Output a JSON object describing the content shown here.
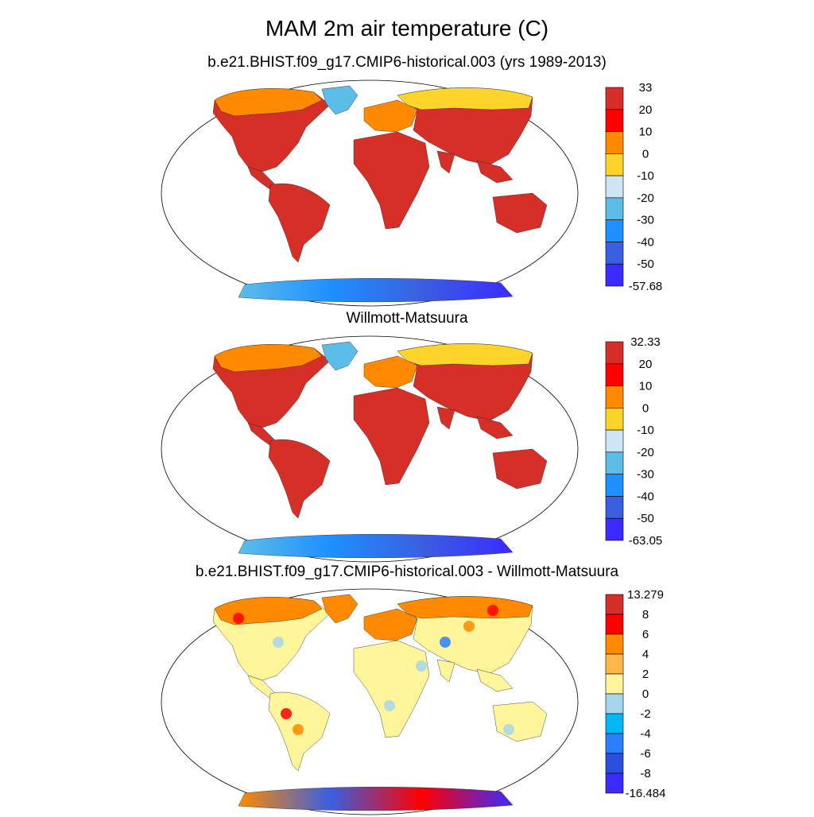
{
  "figure": {
    "title": "MAM 2m air temperature (C)"
  },
  "panels": [
    {
      "subtitle": "b.e21.BHIST.f09_g17.CMIP6-historical.003 (yrs 1989-2013)",
      "colorbar": {
        "labels": [
          "33",
          "20",
          "10",
          "0",
          "-10",
          "-20",
          "-30",
          "-40",
          "-50",
          "-57.68"
        ],
        "colors": [
          "#d62f27",
          "#fe0000",
          "#ff8a00",
          "#ffd42a",
          "#cce6f5",
          "#5cbde9",
          "#1e90ff",
          "#3a5fe0",
          "#3b2bff"
        ]
      },
      "land_color": "#d62f27",
      "north_color": "#ff8a00",
      "high_lat_color": "#ffd42a",
      "ice_colors": [
        "#5cbde9",
        "#1e90ff",
        "#3a5fe0",
        "#3b2bff"
      ]
    },
    {
      "subtitle": "Willmott-Matsuura",
      "colorbar": {
        "labels": [
          "32.33",
          "20",
          "10",
          "0",
          "-10",
          "-20",
          "-30",
          "-40",
          "-50",
          "-63.05"
        ],
        "colors": [
          "#d62f27",
          "#fe0000",
          "#ff8a00",
          "#ffd42a",
          "#cce6f5",
          "#5cbde9",
          "#1e90ff",
          "#3a5fe0",
          "#3b2bff"
        ]
      },
      "land_color": "#d62f27",
      "north_color": "#ff8a00",
      "high_lat_color": "#ffd42a",
      "ice_colors": [
        "#5cbde9",
        "#1e90ff",
        "#3a5fe0",
        "#3b2bff"
      ]
    },
    {
      "subtitle": "b.e21.BHIST.f09_g17.CMIP6-historical.003 - Willmott-Matsuura",
      "colorbar": {
        "labels": [
          "13.279",
          "8",
          "6",
          "4",
          "2",
          "0",
          "-2",
          "-4",
          "-6",
          "-8",
          "-16.484"
        ],
        "colors": [
          "#d62f27",
          "#fe0000",
          "#ff8a00",
          "#ffb847",
          "#fff59a",
          "#a6d6ec",
          "#00b8f5",
          "#2a7fff",
          "#2b4fe0",
          "#3b2bff"
        ]
      },
      "land_color": "#fff59a",
      "north_color": "#ff8a00",
      "high_lat_color": "#ff8a00",
      "ice_colors": [
        "#ff8a00",
        "#3a5fe0",
        "#fe0000",
        "#3b2bff"
      ]
    }
  ]
}
